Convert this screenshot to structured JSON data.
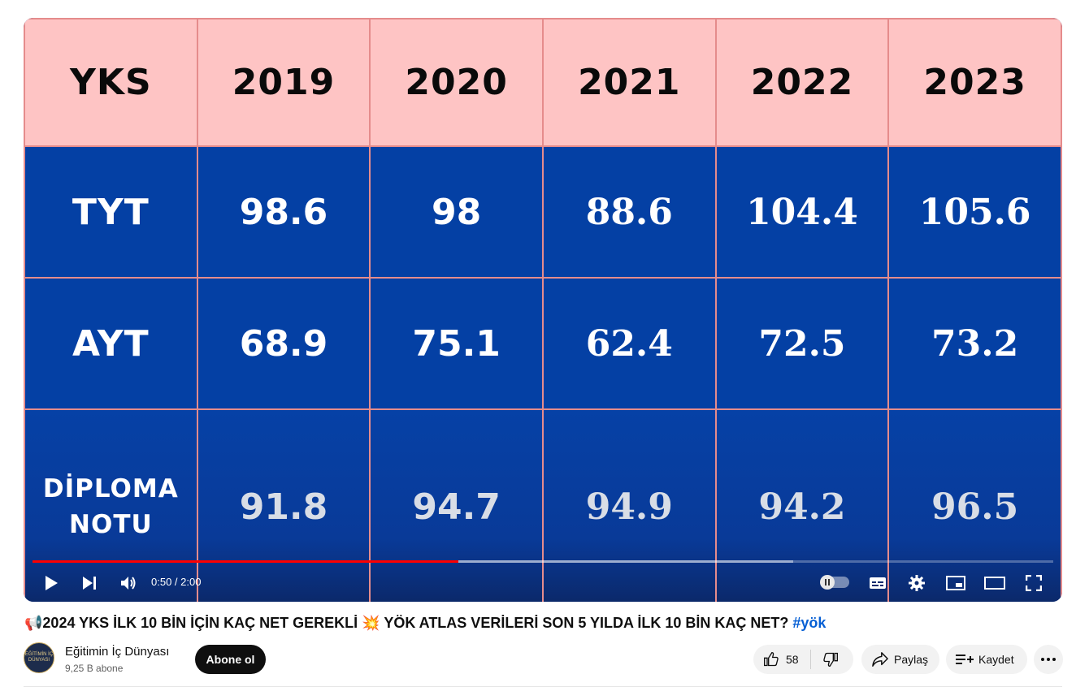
{
  "video": {
    "table": {
      "header": [
        "YKS",
        "2019",
        "2020",
        "2021",
        "2022",
        "2023"
      ],
      "rows": [
        {
          "label": "TYT",
          "values": [
            "98.6",
            "98",
            "88.6",
            "104.4",
            "105.6"
          ]
        },
        {
          "label": "AYT",
          "values": [
            "68.9",
            "75.1",
            "62.4",
            "72.5",
            "73.2"
          ]
        },
        {
          "label_line1": "DİPLOMA",
          "label_line2": "NOTU",
          "values": [
            "91.8",
            "94.7",
            "94.9",
            "94.2",
            "96.5"
          ]
        }
      ]
    },
    "player": {
      "time": "0:50 / 2:00",
      "played_fraction": 0.417,
      "buffered_fraction": 0.745
    }
  },
  "title": {
    "text": "2024 YKS İLK 10 BİN İÇİN KAÇ NET GEREKLİ",
    "text2": "YÖK ATLAS VERİLERİ SON 5 YILDA İLK 10 BİN KAÇ NET?",
    "hashtag": "#yök",
    "emoji1": "📢",
    "emoji2": "💥"
  },
  "channel": {
    "name": "Eğitimin İç Dünyası",
    "subscribers": "9,25 B abone",
    "avatar_text": "EĞİTİMİN İÇ DÜNYASI"
  },
  "actions": {
    "subscribe": "Abone ol",
    "likes": "58",
    "share": "Paylaş",
    "save": "Kaydet"
  },
  "colors": {
    "header_bg": "#fec4c4",
    "body_bg": "#0440a4",
    "label_color": "#f6d64a",
    "progress_played": "#ff0000"
  }
}
